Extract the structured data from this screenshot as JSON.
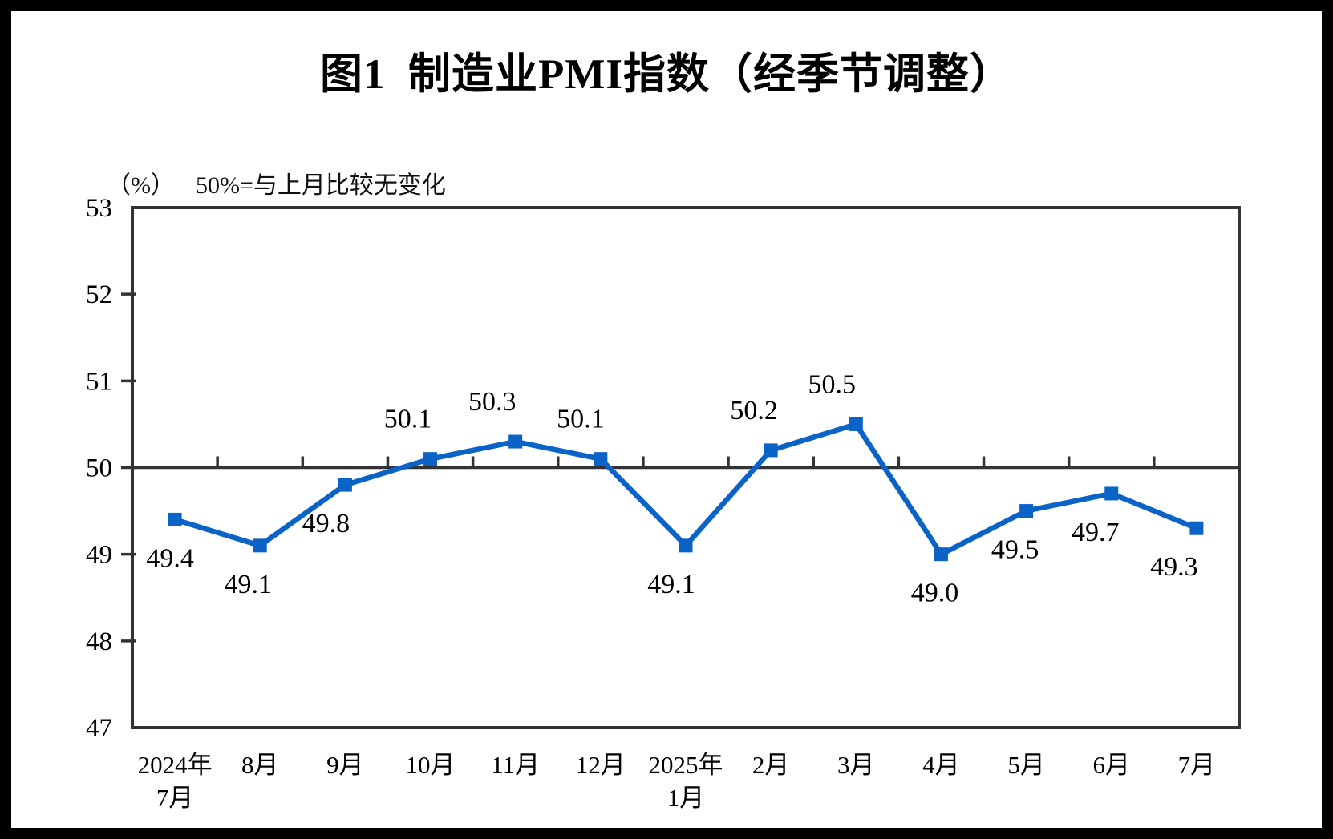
{
  "header": {
    "title": "图1  制造业PMI指数（经季节调整）",
    "unit_label": "（%）",
    "note": "50%=与上月比较无变化"
  },
  "chart_data": {
    "type": "line",
    "title": "图1 制造业PMI指数（经季节调整）",
    "subtitle": "（%） 50%=与上月比较无变化",
    "categories": [
      [
        "2024年",
        "7月"
      ],
      [
        "8月"
      ],
      [
        "9月"
      ],
      [
        "10月"
      ],
      [
        "11月"
      ],
      [
        "12月"
      ],
      [
        "2025年",
        "1月"
      ],
      [
        "2月"
      ],
      [
        "3月"
      ],
      [
        "4月"
      ],
      [
        "5月"
      ],
      [
        "6月"
      ],
      [
        "7月"
      ]
    ],
    "series": [
      {
        "name": "制造业PMI",
        "values": [
          49.4,
          49.1,
          49.8,
          50.1,
          50.3,
          50.1,
          49.1,
          50.2,
          50.5,
          49.0,
          49.5,
          49.7,
          49.3
        ],
        "data_labels": [
          "49.4",
          "49.1",
          "49.8",
          "50.1",
          "50.3",
          "50.1",
          "49.1",
          "50.2",
          "50.5",
          "49.0",
          "49.5",
          "49.7",
          "49.3"
        ]
      }
    ],
    "ylabel": "（%）",
    "yticks": [
      47,
      48,
      49,
      50,
      51,
      52,
      53
    ],
    "ylim": [
      47,
      53
    ],
    "baseline_value": 50,
    "legend": "none",
    "grid": "off",
    "layout_hints": {
      "label_side": [
        "below",
        "below",
        "below",
        "above",
        "above",
        "above",
        "below",
        "above",
        "above",
        "below",
        "below",
        "below",
        "below"
      ],
      "label_dx": [
        -6,
        -15,
        -24,
        -28,
        -29,
        -25,
        -18,
        -21,
        -30,
        -8,
        -14,
        -20,
        -28
      ]
    },
    "colors": {
      "line": "#0B63C8",
      "marker": "#0B63C8",
      "axis": "#333333",
      "text": "#000000"
    }
  }
}
